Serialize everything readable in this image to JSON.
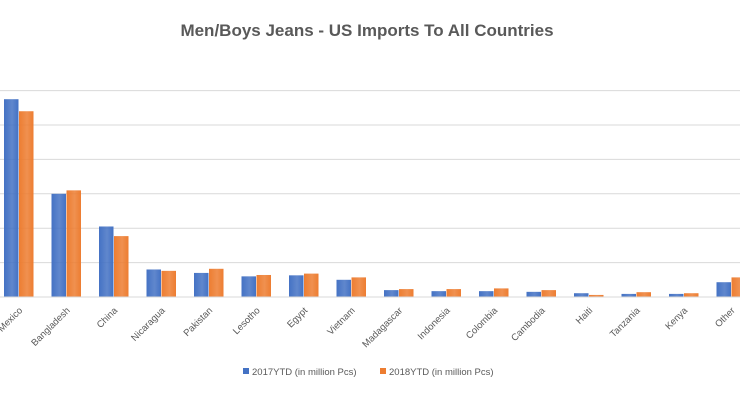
{
  "chart_data": {
    "type": "bar",
    "title": "Men/Boys Jeans - US Imports To All Countries",
    "xlabel": "",
    "ylabel": "",
    "ylim": [
      0,
      60
    ],
    "grid": true,
    "legend_position": "bottom",
    "categories": [
      "Mexico",
      "Bangladesh",
      "China",
      "Nicaragua",
      "Pakistan",
      "Lesotho",
      "Egypt",
      "Vietnam",
      "Madagascar",
      "Indonesia",
      "Colombia",
      "Cambodia",
      "Haiti",
      "Tanzania",
      "Kenya",
      "Other"
    ],
    "series": [
      {
        "name": "2017YTD (in million Pcs)",
        "color": "#4472C4",
        "values": [
          57.5,
          30,
          20.5,
          8,
          7,
          6,
          6.3,
          5,
          2,
          1.7,
          1.7,
          1.5,
          1.1,
          0.9,
          0.9,
          4.3
        ]
      },
      {
        "name": "2018YTD (in million Pcs)",
        "color": "#ED7D31",
        "values": [
          54,
          31,
          17.7,
          7.6,
          8.2,
          6.4,
          6.8,
          5.7,
          2.3,
          2.3,
          2.5,
          2,
          0.6,
          1.4,
          1.1,
          5.7
        ]
      }
    ]
  }
}
